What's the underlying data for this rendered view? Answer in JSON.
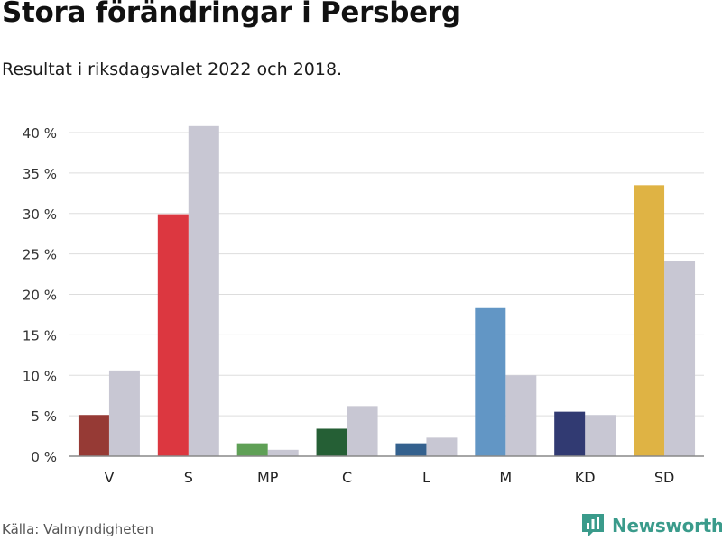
{
  "header": {
    "title": "Stora förändringar i Persberg",
    "subtitle": "Resultat i riksdagsvalet 2022 och 2018."
  },
  "footer": {
    "source": "Källa: Valmyndigheten",
    "brand": "Newsworthy",
    "brand_icon": "newsworthy-logo-icon",
    "brand_color": "#3a9b8b"
  },
  "colors": {
    "previous_year": "#c8c7d3",
    "grid": "#dddddd",
    "axis": "#888888"
  },
  "chart_data": {
    "type": "bar",
    "title": "Stora förändringar i Persberg",
    "subtitle": "Resultat i riksdagsvalet 2022 och 2018.",
    "xlabel": "",
    "ylabel": "",
    "ylim": [
      0,
      40
    ],
    "yticks": [
      0,
      5,
      10,
      15,
      20,
      25,
      30,
      35,
      40
    ],
    "ytick_suffix": " %",
    "grid": true,
    "categories": [
      "V",
      "S",
      "MP",
      "C",
      "L",
      "M",
      "KD",
      "SD"
    ],
    "series": [
      {
        "name": "2022",
        "values": [
          5.1,
          29.9,
          1.6,
          3.4,
          1.6,
          18.3,
          5.5,
          33.5
        ],
        "colors": [
          "#963a35",
          "#dc3740",
          "#5fa056",
          "#255f35",
          "#34618e",
          "#6296c5",
          "#313a72",
          "#dfb344"
        ]
      },
      {
        "name": "2018",
        "values": [
          10.6,
          40.8,
          0.8,
          6.2,
          2.3,
          10.0,
          5.1,
          24.1
        ],
        "color": "#c8c7d3"
      }
    ]
  }
}
